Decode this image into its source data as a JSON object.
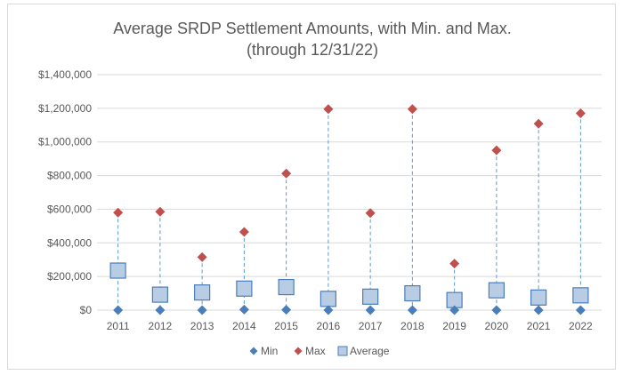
{
  "chart_data": {
    "type": "scatter",
    "title": "Average SRDP Settlement Amounts, with Min. and Max.",
    "subtitle": "(through 12/31/22)",
    "xlabel": "",
    "ylabel": "",
    "categories": [
      "2011",
      "2012",
      "2013",
      "2014",
      "2015",
      "2016",
      "2017",
      "2018",
      "2019",
      "2020",
      "2021",
      "2022"
    ],
    "y_ticks": [
      "$0",
      "$200,000",
      "$400,000",
      "$600,000",
      "$800,000",
      "$1,000,000",
      "$1,200,000",
      "$1,400,000"
    ],
    "ylim": [
      0,
      1400000
    ],
    "grid": true,
    "legend_position": "bottom",
    "series": [
      {
        "name": "Min",
        "marker": "diamond",
        "color": "#4a7ebb",
        "values": [
          0,
          0,
          0,
          3000,
          2000,
          0,
          0,
          0,
          0,
          0,
          0,
          0
        ]
      },
      {
        "name": "Max",
        "marker": "diamond",
        "color": "#c0504d",
        "values": [
          580000,
          585000,
          315000,
          465000,
          812000,
          1195000,
          577000,
          1195000,
          277000,
          950000,
          1108000,
          1170000
        ]
      },
      {
        "name": "Average",
        "marker": "square",
        "color": "#b8cce4",
        "values": [
          235000,
          92000,
          105000,
          128000,
          137000,
          67000,
          80000,
          100000,
          60000,
          118000,
          75000,
          88000
        ]
      }
    ],
    "drop_lines": {
      "color": "#5b9bd5",
      "style": "dashed"
    }
  }
}
